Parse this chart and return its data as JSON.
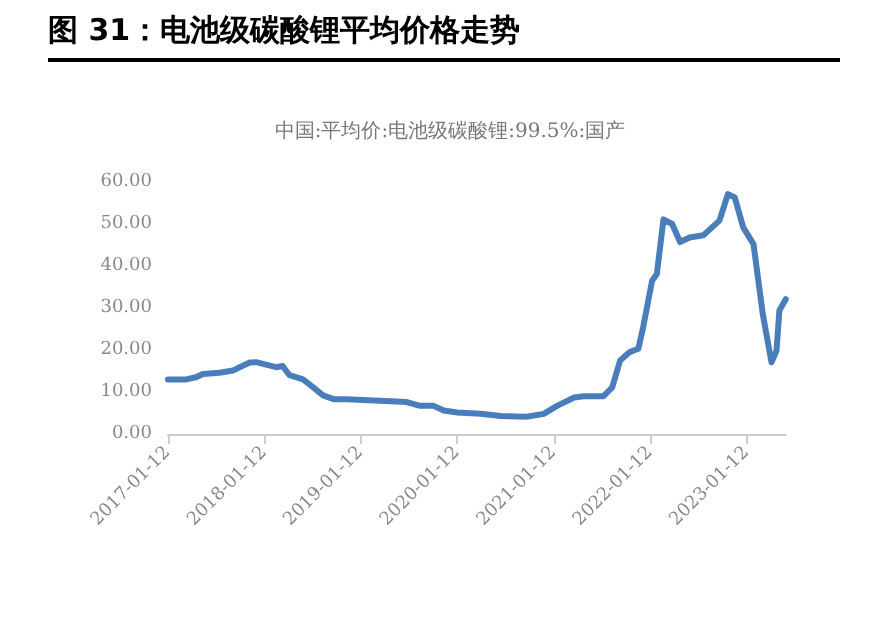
{
  "chart_data": {
    "type": "line",
    "title": "图 31：电池级碳酸锂平均价格走势",
    "subtitle": "中国:平均价:电池级碳酸锂:99.5%:国产",
    "x": [
      "2017-01-12",
      "2017-03-22",
      "2017-04-28",
      "2017-05-24",
      "2017-07-26",
      "2017-09-15",
      "2017-10-10",
      "2017-11-18",
      "2017-12-12",
      "2018-02-02",
      "2018-02-26",
      "2018-03-22",
      "2018-04-17",
      "2018-06-07",
      "2018-07-16",
      "2018-08-22",
      "2018-10-01",
      "2018-11-18",
      "2019-03-25",
      "2019-07-05",
      "2019-08-25",
      "2019-10-15",
      "2019-11-22",
      "2020-01-12",
      "2020-04-10",
      "2020-06-24",
      "2020-10-01",
      "2020-12-05",
      "2021-01-24",
      "2021-03-30",
      "2021-05-05",
      "2021-07-19",
      "2021-08-21",
      "2021-09-20",
      "2021-10-26",
      "2021-11-28",
      "2021-12-16",
      "2022-01-19",
      "2022-02-06",
      "2022-03-03",
      "2022-04-05",
      "2022-05-05",
      "2022-06-10",
      "2022-08-01",
      "2022-09-08",
      "2022-10-01",
      "2022-11-02",
      "2022-11-28",
      "2022-12-30",
      "2023-02-07",
      "2023-03-14",
      "2023-04-16",
      "2023-05-05",
      "2023-05-16",
      "2023-06-09"
    ],
    "series": [
      {
        "color": "#4a7ebb",
        "values": [
          13.0,
          13.0,
          13.5,
          14.3,
          14.6,
          15.1,
          15.9,
          17.0,
          17.1,
          16.3,
          15.9,
          16.2,
          14.0,
          13.0,
          11.1,
          9.2,
          8.3,
          8.3,
          7.9,
          7.6,
          6.7,
          6.7,
          5.6,
          5.1,
          4.8,
          4.3,
          4.1,
          4.8,
          6.7,
          8.7,
          9.0,
          9.0,
          11.1,
          17.5,
          19.5,
          20.3,
          25.4,
          36.5,
          38.1,
          51.1,
          50.0,
          45.7,
          46.8,
          47.3,
          49.5,
          50.8,
          57.1,
          56.3,
          49.2,
          45.2,
          28.6,
          17.1,
          19.8,
          29.4,
          32.1
        ]
      }
    ],
    "xlim": [
      "2017-01-12",
      "2023-06-10"
    ],
    "xticks": [
      "2017-01-12",
      "2018-01-12",
      "2019-01-12",
      "2020-01-12",
      "2021-01-12",
      "2022-01-12",
      "2023-01-12"
    ],
    "ylim": [
      0,
      60
    ],
    "yticks": [
      {
        "value": 0,
        "label": "0.00"
      },
      {
        "value": 10,
        "label": "10.00"
      },
      {
        "value": 20,
        "label": "20.00"
      },
      {
        "value": 30,
        "label": "30.00"
      },
      {
        "value": 40,
        "label": "40.00"
      },
      {
        "value": 50,
        "label": "50.00"
      },
      {
        "value": 60,
        "label": "60.00"
      }
    ],
    "grid": false,
    "marker": "none",
    "line_style": "solid"
  }
}
